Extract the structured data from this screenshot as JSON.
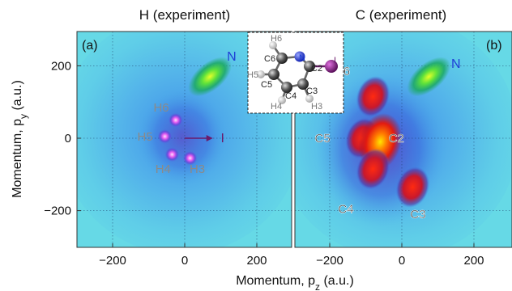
{
  "panels": [
    {
      "id": "a",
      "title": "H (experiment)",
      "label": "(a)"
    },
    {
      "id": "b",
      "title": "C (experiment)",
      "label": "(b)"
    }
  ],
  "axes": {
    "xlabel": "Momentum, p",
    "xlabel_sub": "z",
    "xlabel_unit": " (a.u.)",
    "ylabel": "Momentum, p",
    "ylabel_sub": "y",
    "ylabel_unit": " (a.u.)",
    "xticks": [
      "−200",
      "0",
      "200"
    ],
    "yticks": [
      "200",
      "0",
      "−200"
    ]
  },
  "inset": {
    "atoms": {
      "H6": "H6",
      "C6": "C6",
      "N": "N",
      "C2": "C2",
      "I": "I",
      "H5": "H5",
      "C5": "C5",
      "C3": "C3",
      "C4": "C4",
      "H4": "H4",
      "H3": "H3"
    }
  },
  "colors": {
    "background": "#66d9e6",
    "hot": "#ff1a00",
    "nitrogen": "#1f3fd6",
    "iodine": "#6b1a6b",
    "hydrogen_label": "#8a8a8a"
  },
  "chart_data": [
    {
      "type": "heatmap",
      "panel": "a",
      "title": "H (experiment)",
      "xlabel": "Momentum, p_z (a.u.)",
      "ylabel": "Momentum, p_y (a.u.)",
      "xlim": [
        -300,
        300
      ],
      "ylim": [
        -300,
        300
      ],
      "xticks": [
        -200,
        0,
        200
      ],
      "yticks": [
        -200,
        0,
        200
      ],
      "grid": true,
      "features": [
        {
          "name": "N",
          "x": 70,
          "y": 170,
          "intensity": "high"
        },
        {
          "name": "H6",
          "x": -25,
          "y": 50,
          "intensity": "high"
        },
        {
          "name": "H5",
          "x": -55,
          "y": 5,
          "intensity": "high"
        },
        {
          "name": "H4",
          "x": -35,
          "y": -45,
          "intensity": "high"
        },
        {
          "name": "H3",
          "x": 15,
          "y": -55,
          "intensity": "high"
        }
      ],
      "annotations": [
        {
          "text": "I",
          "x": 105,
          "y": 0,
          "arrow_from": [
            0,
            0
          ]
        },
        {
          "text": "N",
          "x": 130,
          "y": 225
        },
        {
          "text": "H6",
          "x": -65,
          "y": 85
        },
        {
          "text": "H5",
          "x": -110,
          "y": 5
        },
        {
          "text": "H4",
          "x": -60,
          "y": -85
        },
        {
          "text": "H3",
          "x": 35,
          "y": -85
        }
      ]
    },
    {
      "type": "heatmap",
      "panel": "b",
      "title": "C (experiment)",
      "xlabel": "Momentum, p_z (a.u.)",
      "ylabel": "Momentum, p_y (a.u.)",
      "xlim": [
        -300,
        300
      ],
      "ylim": [
        -300,
        300
      ],
      "xticks": [
        -200,
        0,
        200
      ],
      "yticks": [
        -200,
        0,
        200
      ],
      "grid": true,
      "features": [
        {
          "name": "N",
          "x": 75,
          "y": 170,
          "intensity": "high"
        },
        {
          "name": "C6",
          "x": -80,
          "y": 115,
          "intensity": "high"
        },
        {
          "name": "C5",
          "x": -110,
          "y": 0,
          "intensity": "high"
        },
        {
          "name": "C2",
          "x": -60,
          "y": -10,
          "intensity": "very high"
        },
        {
          "name": "C4",
          "x": -80,
          "y": -85,
          "intensity": "high"
        },
        {
          "name": "C3",
          "x": 30,
          "y": -135,
          "intensity": "high"
        }
      ],
      "annotations": [
        {
          "text": "N",
          "x": 150,
          "y": 205
        },
        {
          "text": "C6",
          "x": -165,
          "y": 185
        },
        {
          "text": "C5",
          "x": -220,
          "y": 0
        },
        {
          "text": "C2",
          "x": -15,
          "y": 0
        },
        {
          "text": "C4",
          "x": -155,
          "y": -195
        },
        {
          "text": "C3",
          "x": 45,
          "y": -210
        }
      ]
    }
  ]
}
